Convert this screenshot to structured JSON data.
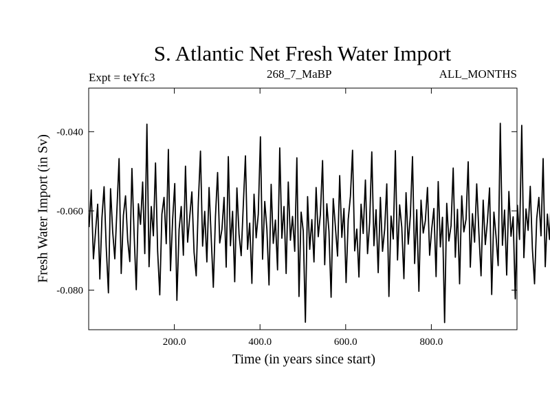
{
  "chart_data": {
    "type": "line",
    "title": "S. Atlantic Net Fresh Water Import",
    "subtitle_left": "Expt = teYfc3",
    "subtitle_center": "268_7_MaBP",
    "subtitle_right": "ALL_MONTHS",
    "xlabel": "Time (in years since start)",
    "ylabel": "Fresh Water Import (in Sv)",
    "xlim": [
      0,
      1000
    ],
    "ylim": [
      -0.09,
      -0.029
    ],
    "xticks": [
      200,
      400,
      600,
      800
    ],
    "xtick_labels": [
      "200.0",
      "400.0",
      "600.0",
      "800.0"
    ],
    "yticks": [
      -0.08,
      -0.06,
      -0.04
    ],
    "ytick_labels": [
      "-0.080",
      "-0.060",
      "-0.040"
    ],
    "series": [
      {
        "name": "Net fresh water import",
        "x_start": 1,
        "x_step": 5,
        "values": [
          -0.0641,
          -0.0547,
          -0.0721,
          -0.0652,
          -0.0583,
          -0.0772,
          -0.0617,
          -0.0539,
          -0.0691,
          -0.0807,
          -0.0544,
          -0.0652,
          -0.0721,
          -0.0596,
          -0.0468,
          -0.0758,
          -0.0611,
          -0.0562,
          -0.0673,
          -0.0728,
          -0.0493,
          -0.0655,
          -0.0799,
          -0.0582,
          -0.0634,
          -0.0527,
          -0.0708,
          -0.0381,
          -0.0741,
          -0.0589,
          -0.0663,
          -0.0479,
          -0.0702,
          -0.0812,
          -0.0608,
          -0.0566,
          -0.0683,
          -0.0445,
          -0.0751,
          -0.0622,
          -0.0531,
          -0.0826,
          -0.0647,
          -0.0589,
          -0.0712,
          -0.0487,
          -0.0679,
          -0.0614,
          -0.0552,
          -0.0705,
          -0.0764,
          -0.0578,
          -0.0449,
          -0.0689,
          -0.0601,
          -0.0729,
          -0.0541,
          -0.0667,
          -0.0793,
          -0.0614,
          -0.0503,
          -0.0681,
          -0.0647,
          -0.0566,
          -0.0742,
          -0.0463,
          -0.0688,
          -0.0601,
          -0.0779,
          -0.0542,
          -0.0659,
          -0.0713,
          -0.0585,
          -0.0461,
          -0.0697,
          -0.0631,
          -0.0783,
          -0.0558,
          -0.0668,
          -0.0608,
          -0.0413,
          -0.0722,
          -0.0576,
          -0.0646,
          -0.0787,
          -0.0533,
          -0.0682,
          -0.0623,
          -0.0749,
          -0.0441,
          -0.0669,
          -0.0589,
          -0.0758,
          -0.0527,
          -0.0674,
          -0.0614,
          -0.0702,
          -0.0466,
          -0.0816,
          -0.0603,
          -0.0651,
          -0.0881,
          -0.0564,
          -0.0697,
          -0.0622,
          -0.0729,
          -0.0541,
          -0.0665,
          -0.0609,
          -0.0473,
          -0.0736,
          -0.0582,
          -0.0652,
          -0.0818,
          -0.0569,
          -0.0639,
          -0.0714,
          -0.0511,
          -0.0667,
          -0.0594,
          -0.0781,
          -0.0622,
          -0.0563,
          -0.0447,
          -0.0701,
          -0.0646,
          -0.0767,
          -0.0583,
          -0.0657,
          -0.0522,
          -0.0708,
          -0.0629,
          -0.0451,
          -0.0688,
          -0.0597,
          -0.0756,
          -0.0566,
          -0.0702,
          -0.0647,
          -0.0532,
          -0.0816,
          -0.0613,
          -0.0671,
          -0.0448,
          -0.0724,
          -0.0585,
          -0.0641,
          -0.0771,
          -0.0554,
          -0.0684,
          -0.0612,
          -0.0463,
          -0.0733,
          -0.0597,
          -0.0803,
          -0.0573,
          -0.0656,
          -0.0625,
          -0.0541,
          -0.0712,
          -0.0645,
          -0.0594,
          -0.0766,
          -0.0526,
          -0.0691,
          -0.0616,
          -0.0882,
          -0.0581,
          -0.0676,
          -0.0637,
          -0.0492,
          -0.0717,
          -0.0596,
          -0.0784,
          -0.0562,
          -0.0653,
          -0.0621,
          -0.0476,
          -0.0742,
          -0.0607,
          -0.0679,
          -0.0532,
          -0.0656,
          -0.0764,
          -0.0573,
          -0.0685,
          -0.0626,
          -0.0542,
          -0.0811,
          -0.0603,
          -0.0664,
          -0.0738,
          -0.0379,
          -0.0687,
          -0.0598,
          -0.0762,
          -0.0551,
          -0.0664,
          -0.0615,
          -0.0822,
          -0.0586,
          -0.0672,
          -0.0384,
          -0.0718,
          -0.0595,
          -0.0649,
          -0.0538,
          -0.0696,
          -0.0784,
          -0.0619,
          -0.0566,
          -0.0663,
          -0.0468,
          -0.0741,
          -0.0608,
          -0.0672,
          -0.0533,
          -0.0689,
          -0.0621,
          -0.0786,
          -0.0582,
          -0.0661,
          -0.0508,
          -0.0715,
          -0.0643,
          -0.0577,
          -0.0758,
          -0.0603,
          -0.0527,
          -0.0694,
          -0.0805,
          -0.0614,
          -0.0663,
          -0.0541,
          -0.0725,
          -0.0599,
          -0.0857,
          -0.0632,
          -0.0573,
          -0.0689,
          -0.0612,
          -0.0769,
          -0.0547,
          -0.0674,
          -0.0626,
          -0.0478,
          -0.0722,
          -0.0598,
          -0.0656,
          -0.0531,
          -0.0703,
          -0.0617,
          -0.0853,
          -0.0584,
          -0.0668,
          -0.0622,
          -0.0503,
          -0.0751,
          -0.0593,
          -0.0678,
          -0.0529,
          -0.0701,
          -0.0632,
          -0.0571,
          -0.0838,
          -0.0606,
          -0.0664,
          -0.0552,
          -0.0714,
          -0.0646,
          -0.0583,
          -0.0764,
          -0.0554,
          -0.0692,
          -0.0621,
          -0.0481,
          -0.0733,
          -0.0609,
          -0.0662,
          -0.0868,
          -0.0572,
          -0.0652,
          -0.0535,
          -0.0728,
          -0.0637,
          -0.0584,
          -0.0774,
          -0.0556,
          -0.0681,
          -0.0619,
          -0.0385,
          -0.0712,
          -0.0596,
          -0.0652,
          -0.0523,
          -0.0691,
          -0.0777,
          -0.0608,
          -0.0426,
          -0.0658,
          -0.0589,
          -0.0713,
          -0.0861,
          -0.0567,
          -0.0676,
          -0.0633,
          -0.0524,
          -0.0742,
          -0.0608,
          -0.0668,
          -0.0542,
          -0.0702,
          -0.0868,
          -0.0611,
          -0.0671,
          -0.0396,
          -0.0735,
          -0.0589,
          -0.0662,
          -0.0522,
          -0.0693,
          -0.0789,
          -0.0614,
          -0.0446,
          -0.0683,
          -0.0588,
          -0.0727,
          -0.0603,
          -0.0383,
          -0.0676,
          -0.0892,
          -0.0571,
          -0.0653,
          -0.0602,
          -0.0841,
          -0.0566,
          -0.0678,
          -0.0474,
          -0.0721,
          -0.0613,
          -0.0875,
          -0.0582,
          -0.0665,
          -0.0597,
          -0.0713,
          -0.0556,
          -0.0689,
          -0.0604,
          -0.0753,
          -0.0578,
          -0.0651,
          -0.0843,
          -0.0574,
          -0.0682,
          -0.0641,
          -0.0563,
          -0.0718,
          -0.0602,
          -0.0664,
          -0.0591,
          -0.0739,
          -0.0569,
          -0.0684,
          -0.0625,
          -0.0566
        ]
      }
    ]
  }
}
